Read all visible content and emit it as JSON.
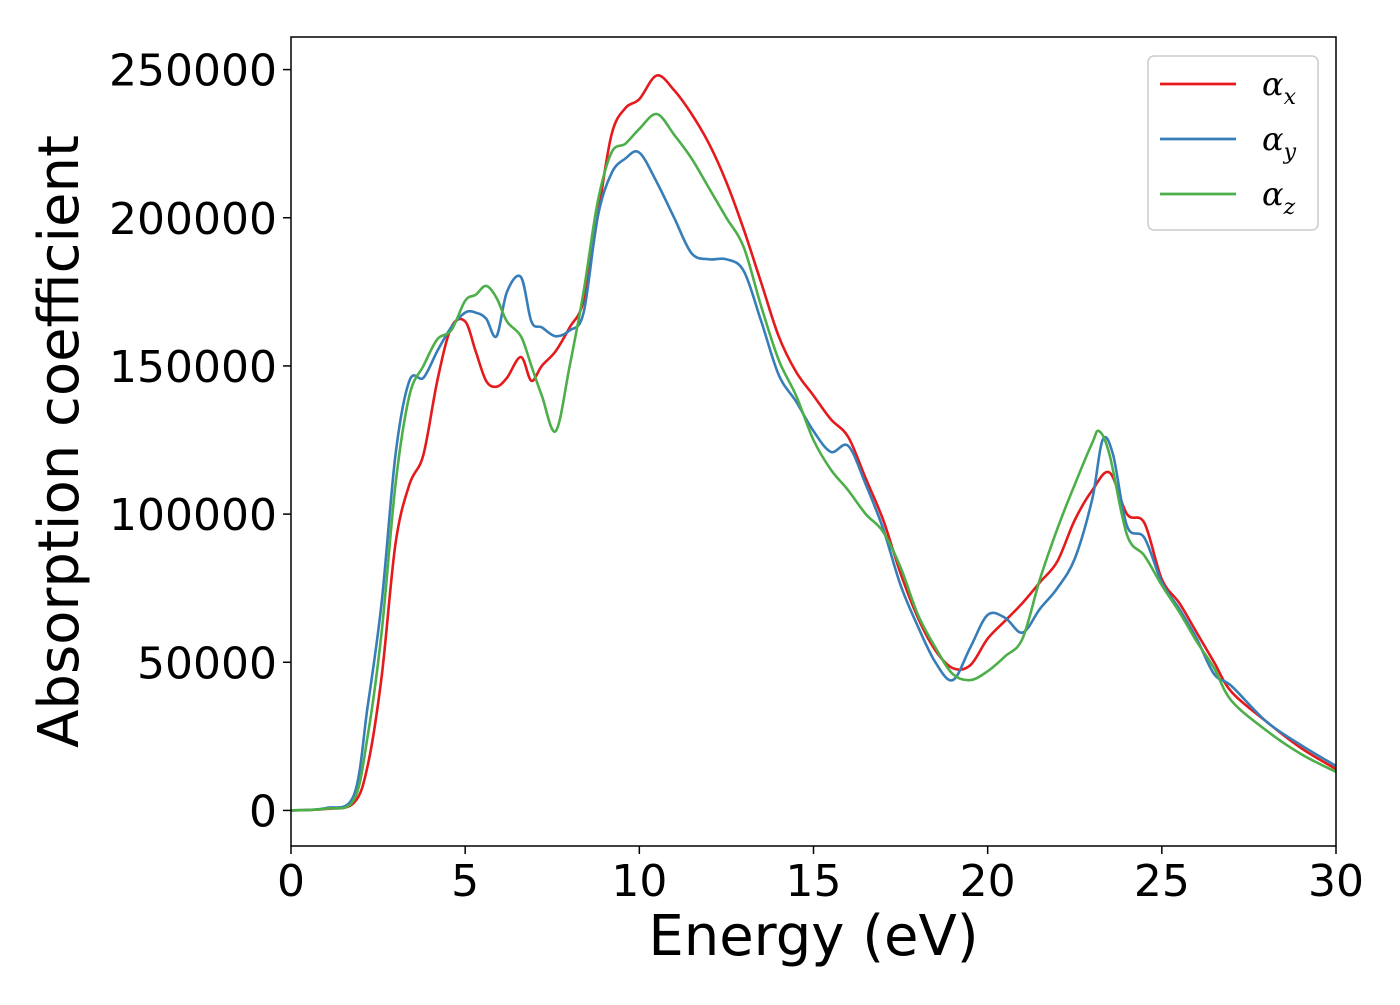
{
  "chart_data": {
    "type": "line",
    "xlabel": "Energy (eV)",
    "ylabel": "Absorption coefficient",
    "xlim": [
      0,
      30
    ],
    "ylim": [
      -12000,
      261000
    ],
    "xticks": [
      0,
      5,
      10,
      15,
      20,
      25,
      30
    ],
    "yticks": [
      0,
      50000,
      100000,
      150000,
      200000,
      250000
    ],
    "grid": false,
    "legend_position": "top-right",
    "series": [
      {
        "name": "α_x",
        "legend_symbol": "α",
        "legend_subscript": "x",
        "color": "#e41a1c",
        "x": [
          0,
          1,
          1.8,
          2.2,
          2.6,
          3.0,
          3.4,
          3.8,
          4.2,
          4.6,
          5.0,
          5.3,
          5.6,
          5.9,
          6.2,
          6.6,
          6.9,
          7.2,
          7.6,
          8.0,
          8.4,
          8.8,
          9.2,
          9.6,
          10.0,
          10.5,
          11.0,
          11.5,
          12.0,
          12.5,
          13.0,
          13.5,
          14.0,
          14.5,
          15.0,
          15.5,
          16.0,
          16.5,
          17.0,
          17.5,
          18.0,
          18.5,
          19.0,
          19.5,
          20.0,
          20.5,
          21.0,
          21.5,
          22.0,
          22.5,
          23.0,
          23.5,
          24.0,
          24.5,
          25.0,
          25.5,
          26.0,
          26.5,
          27.0,
          28.0,
          29.0,
          30.0
        ],
        "values": [
          0,
          500,
          2500,
          15000,
          45000,
          90000,
          110000,
          120000,
          145000,
          163000,
          165000,
          155000,
          145000,
          143000,
          146000,
          153000,
          145000,
          150000,
          155000,
          163000,
          172000,
          200000,
          228000,
          237000,
          240000,
          248000,
          243000,
          235000,
          225000,
          212000,
          196000,
          178000,
          160000,
          148000,
          140000,
          132000,
          126000,
          112000,
          98000,
          80000,
          65000,
          54000,
          48000,
          49000,
          58000,
          64000,
          70000,
          77000,
          84000,
          98000,
          108000,
          114000,
          100000,
          97000,
          78000,
          70000,
          60000,
          50000,
          40000,
          30000,
          21000,
          14000
        ]
      },
      {
        "name": "α_y",
        "legend_symbol": "α",
        "legend_subscript": "y",
        "color": "#377eb8",
        "x": [
          0,
          1,
          1.8,
          2.2,
          2.6,
          3.0,
          3.4,
          3.8,
          4.2,
          4.6,
          5.0,
          5.3,
          5.6,
          5.9,
          6.2,
          6.6,
          6.9,
          7.2,
          7.6,
          8.0,
          8.4,
          8.8,
          9.2,
          9.6,
          10.0,
          10.5,
          11.0,
          11.5,
          12.0,
          12.5,
          13.0,
          13.5,
          14.0,
          14.5,
          15.0,
          15.5,
          16.0,
          16.5,
          17.0,
          17.5,
          18.0,
          18.5,
          19.0,
          19.5,
          20.0,
          20.5,
          21.0,
          21.5,
          22.0,
          22.5,
          23.0,
          23.3,
          23.6,
          24.0,
          24.5,
          25.0,
          25.5,
          26.0,
          26.5,
          27.0,
          28.0,
          29.0,
          30.0
        ],
        "values": [
          0,
          800,
          5000,
          35000,
          70000,
          120000,
          145000,
          146000,
          155000,
          163000,
          168000,
          168000,
          166000,
          160000,
          175000,
          180000,
          165000,
          163000,
          160000,
          162000,
          168000,
          200000,
          215000,
          220000,
          222000,
          212000,
          200000,
          188000,
          186000,
          186000,
          182000,
          165000,
          147000,
          138000,
          128000,
          121000,
          123000,
          110000,
          95000,
          76000,
          62000,
          50000,
          44000,
          55000,
          66000,
          65000,
          60000,
          68000,
          75000,
          85000,
          105000,
          125000,
          120000,
          96000,
          92000,
          77000,
          68000,
          58000,
          46000,
          42000,
          30000,
          22000,
          15000
        ]
      },
      {
        "name": "α_z",
        "legend_symbol": "α",
        "legend_subscript": "z",
        "color": "#4daf4a",
        "x": [
          0,
          1,
          1.8,
          2.2,
          2.6,
          3.0,
          3.4,
          3.8,
          4.2,
          4.6,
          5.0,
          5.3,
          5.6,
          5.9,
          6.2,
          6.6,
          6.9,
          7.2,
          7.6,
          8.0,
          8.4,
          8.8,
          9.2,
          9.6,
          10.0,
          10.5,
          11.0,
          11.5,
          12.0,
          12.5,
          13.0,
          13.5,
          14.0,
          14.5,
          15.0,
          15.5,
          16.0,
          16.5,
          17.0,
          17.5,
          18.0,
          18.5,
          19.0,
          19.5,
          20.0,
          20.5,
          21.0,
          21.5,
          22.0,
          22.5,
          23.0,
          23.2,
          23.5,
          24.0,
          24.5,
          25.0,
          25.5,
          26.0,
          26.5,
          27.0,
          28.0,
          29.0,
          30.0
        ],
        "values": [
          0,
          600,
          3500,
          25000,
          60000,
          110000,
          140000,
          150000,
          159000,
          162000,
          172000,
          174000,
          177000,
          173000,
          165000,
          160000,
          150000,
          140000,
          128000,
          150000,
          175000,
          205000,
          222000,
          225000,
          230000,
          235000,
          228000,
          220000,
          210000,
          200000,
          190000,
          170000,
          152000,
          140000,
          125000,
          115000,
          108000,
          100000,
          94000,
          82000,
          66000,
          55000,
          46000,
          44000,
          47000,
          52000,
          58000,
          78000,
          95000,
          110000,
          124000,
          128000,
          120000,
          93000,
          86000,
          76000,
          67000,
          57000,
          48000,
          37000,
          27000,
          19000,
          13000
        ]
      }
    ]
  }
}
